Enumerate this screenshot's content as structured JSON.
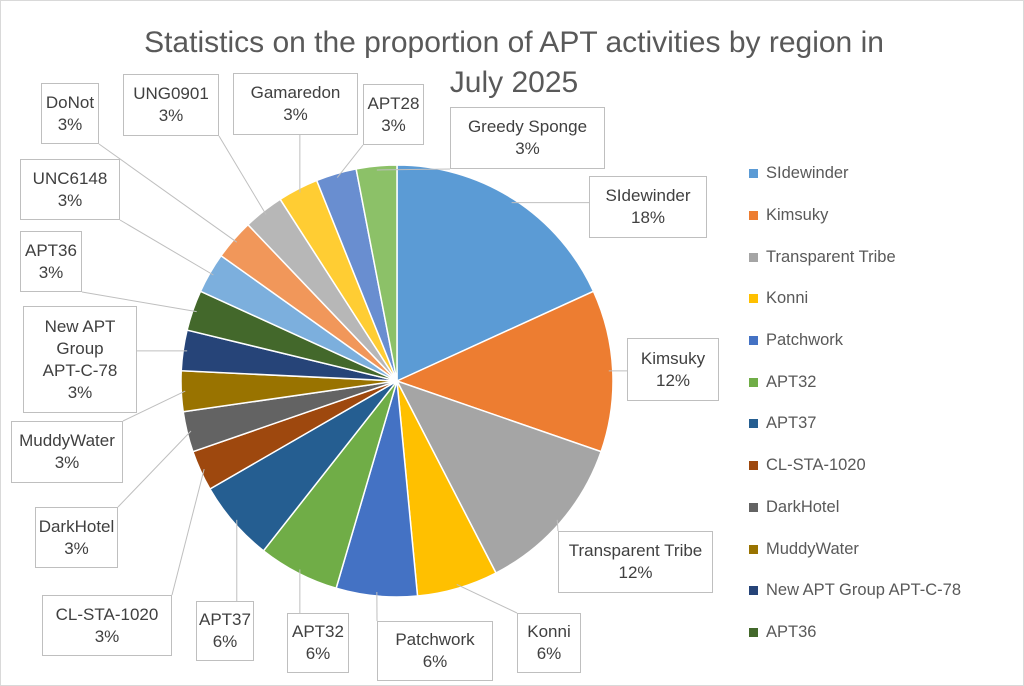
{
  "chart_data": {
    "type": "pie",
    "title": "Statistics on the proportion of APT activities by region in July 2025",
    "title_lines": [
      "Statistics on the proportion of APT activities by region in",
      "July 2025"
    ],
    "legend_placement": "right",
    "slices": [
      {
        "label": "SIdewinder",
        "value": 18,
        "display": "18%",
        "color": "#5B9BD5",
        "in_legend": true
      },
      {
        "label": "Kimsuky",
        "value": 12,
        "display": "12%",
        "color": "#ED7D31",
        "in_legend": true
      },
      {
        "label": "Transparent Tribe",
        "value": 12,
        "display": "12%",
        "color": "#A5A5A5",
        "in_legend": true
      },
      {
        "label": "Konni",
        "value": 6,
        "display": "6%",
        "color": "#FFC000",
        "in_legend": true
      },
      {
        "label": "Patchwork",
        "value": 6,
        "display": "6%",
        "color": "#4472C4",
        "in_legend": true
      },
      {
        "label": "APT32",
        "value": 6,
        "display": "6%",
        "color": "#70AD47",
        "in_legend": true
      },
      {
        "label": "APT37",
        "value": 6,
        "display": "6%",
        "color": "#255E91",
        "in_legend": true
      },
      {
        "label": "CL-STA-1020",
        "value": 3,
        "display": "3%",
        "color": "#9E480E",
        "in_legend": true
      },
      {
        "label": "DarkHotel",
        "value": 3,
        "display": "3%",
        "color": "#636363",
        "in_legend": true
      },
      {
        "label": "MuddyWater",
        "value": 3,
        "display": "3%",
        "color": "#997300",
        "in_legend": true
      },
      {
        "label": "New APT Group APT-C-78",
        "label_lines": [
          "New APT",
          "Group",
          "APT-C-78"
        ],
        "value": 3,
        "display": "3%",
        "color": "#264478",
        "in_legend": true
      },
      {
        "label": "APT36",
        "value": 3,
        "display": "3%",
        "color": "#43682B",
        "in_legend": true
      },
      {
        "label": "UNC6148",
        "value": 3,
        "display": "3%",
        "color": "#7CAFDD",
        "in_legend": false
      },
      {
        "label": "DoNot",
        "value": 3,
        "display": "3%",
        "color": "#F1975A",
        "in_legend": false
      },
      {
        "label": "UNG0901",
        "value": 3,
        "display": "3%",
        "color": "#B7B7B7",
        "in_legend": false
      },
      {
        "label": "Gamaredon",
        "value": 3,
        "display": "3%",
        "color": "#FFCD33",
        "in_legend": false
      },
      {
        "label": "APT28",
        "value": 3,
        "display": "3%",
        "color": "#698ED0",
        "in_legend": false
      },
      {
        "label": "Greedy Sponge",
        "value": 3,
        "display": "3%",
        "color": "#8CC168",
        "in_legend": false
      }
    ]
  }
}
